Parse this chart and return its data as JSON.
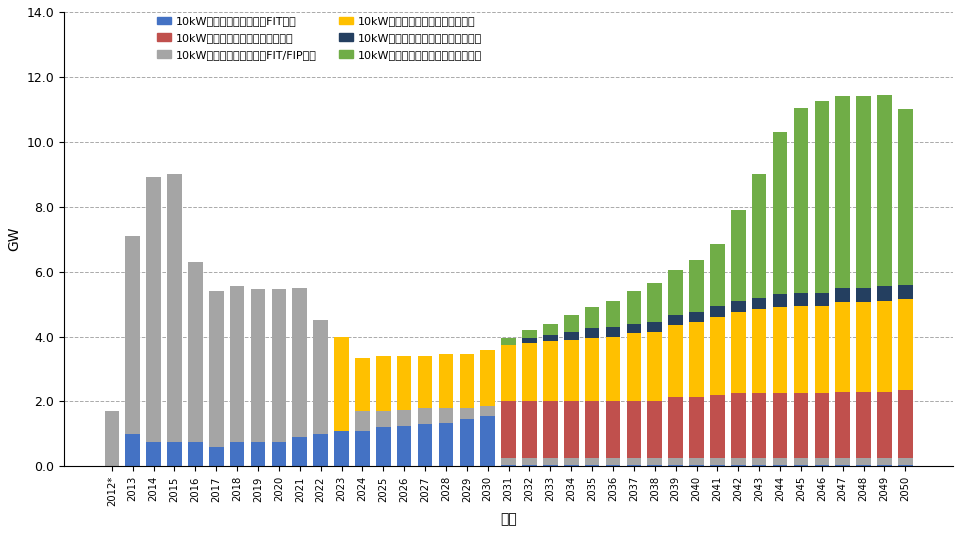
{
  "years": [
    "2012*",
    "2013",
    "2014",
    "2015",
    "2016",
    "2017",
    "2018",
    "2019",
    "2020",
    "2021",
    "2022",
    "2023",
    "2024",
    "2025",
    "2026",
    "2027",
    "2028",
    "2029",
    "2030",
    "2031",
    "2032",
    "2033",
    "2034",
    "2035",
    "2036",
    "2037",
    "2038",
    "2039",
    "2040",
    "2041",
    "2042",
    "2043",
    "2044",
    "2045",
    "2046",
    "2047",
    "2048",
    "2049",
    "2050"
  ],
  "series": {
    "fit_small": [
      0.0,
      1.0,
      0.75,
      0.75,
      0.75,
      0.6,
      0.75,
      0.75,
      0.75,
      0.9,
      1.0,
      1.1,
      1.1,
      1.2,
      1.25,
      1.3,
      1.35,
      1.45,
      1.55,
      0.05,
      0.05,
      0.05,
      0.05,
      0.05,
      0.05,
      0.05,
      0.05,
      0.05,
      0.05,
      0.05,
      0.05,
      0.05,
      0.05,
      0.05,
      0.05,
      0.05,
      0.05,
      0.05,
      0.05
    ],
    "fit_large": [
      1.7,
      6.1,
      8.15,
      8.25,
      5.55,
      4.8,
      4.8,
      4.7,
      4.7,
      4.6,
      3.5,
      0.0,
      0.6,
      0.5,
      0.5,
      0.5,
      0.45,
      0.35,
      0.3,
      0.2,
      0.2,
      0.2,
      0.2,
      0.2,
      0.2,
      0.2,
      0.2,
      0.2,
      0.2,
      0.2,
      0.2,
      0.2,
      0.2,
      0.2,
      0.2,
      0.2,
      0.2,
      0.2,
      0.2
    ],
    "auto_small": [
      0.0,
      0.0,
      0.0,
      0.0,
      0.0,
      0.0,
      0.0,
      0.0,
      0.0,
      0.0,
      0.0,
      0.0,
      0.0,
      0.0,
      0.0,
      0.0,
      0.0,
      0.0,
      0.0,
      1.75,
      1.75,
      1.75,
      1.75,
      1.75,
      1.75,
      1.75,
      1.75,
      1.9,
      1.9,
      1.95,
      2.0,
      2.0,
      2.0,
      2.0,
      2.0,
      2.05,
      2.05,
      2.05,
      2.1
    ],
    "auto_large": [
      0.0,
      0.0,
      0.0,
      0.0,
      0.0,
      0.0,
      0.0,
      0.0,
      0.0,
      0.0,
      0.0,
      2.9,
      1.65,
      1.7,
      1.65,
      1.6,
      1.65,
      1.65,
      1.75,
      1.75,
      1.8,
      1.85,
      1.9,
      1.95,
      2.0,
      2.1,
      2.15,
      2.2,
      2.3,
      2.4,
      2.5,
      2.6,
      2.65,
      2.7,
      2.7,
      2.75,
      2.75,
      2.8,
      2.8
    ],
    "replace_small": [
      0.0,
      0.0,
      0.0,
      0.0,
      0.0,
      0.0,
      0.0,
      0.0,
      0.0,
      0.0,
      0.0,
      0.0,
      0.0,
      0.0,
      0.0,
      0.0,
      0.0,
      0.0,
      0.0,
      0.0,
      0.15,
      0.2,
      0.25,
      0.3,
      0.3,
      0.3,
      0.3,
      0.3,
      0.3,
      0.35,
      0.35,
      0.35,
      0.4,
      0.4,
      0.4,
      0.45,
      0.45,
      0.45,
      0.45
    ],
    "replace_large": [
      0.0,
      0.0,
      0.0,
      0.0,
      0.0,
      0.0,
      0.0,
      0.0,
      0.0,
      0.0,
      0.0,
      0.0,
      0.0,
      0.0,
      0.0,
      0.0,
      0.0,
      0.0,
      0.0,
      0.2,
      0.25,
      0.35,
      0.5,
      0.65,
      0.8,
      1.0,
      1.2,
      1.4,
      1.6,
      1.9,
      2.8,
      3.8,
      5.0,
      5.7,
      5.9,
      5.9,
      5.9,
      5.9,
      5.4
    ]
  },
  "colors": {
    "fit_small": "#4472C4",
    "fit_large": "#A5A5A5",
    "auto_small": "#C0504D",
    "auto_large": "#FFC000",
    "replace_small": "#243F60",
    "replace_large": "#70AD47"
  },
  "legend_labels": {
    "fit_small": "10kW未満新規（年間）：FIT電源",
    "fit_large": "10kW以上新規（年間）：FIT/FIP電源",
    "auto_small": "10kW未満新規（年間）：自立導入",
    "auto_large": "10kW以上新規（年間）：自立導入",
    "replace_small": "10kW未満リプレース＆増設（年間）",
    "replace_large": "10kW以上リプレース＆増設（年間）"
  },
  "ylabel": "GW",
  "xlabel": "年度",
  "ylim": [
    0,
    14.0
  ],
  "yticks": [
    0.0,
    2.0,
    4.0,
    6.0,
    8.0,
    10.0,
    12.0,
    14.0
  ],
  "background_color": "#FFFFFF",
  "grid_color": "#AAAAAA"
}
